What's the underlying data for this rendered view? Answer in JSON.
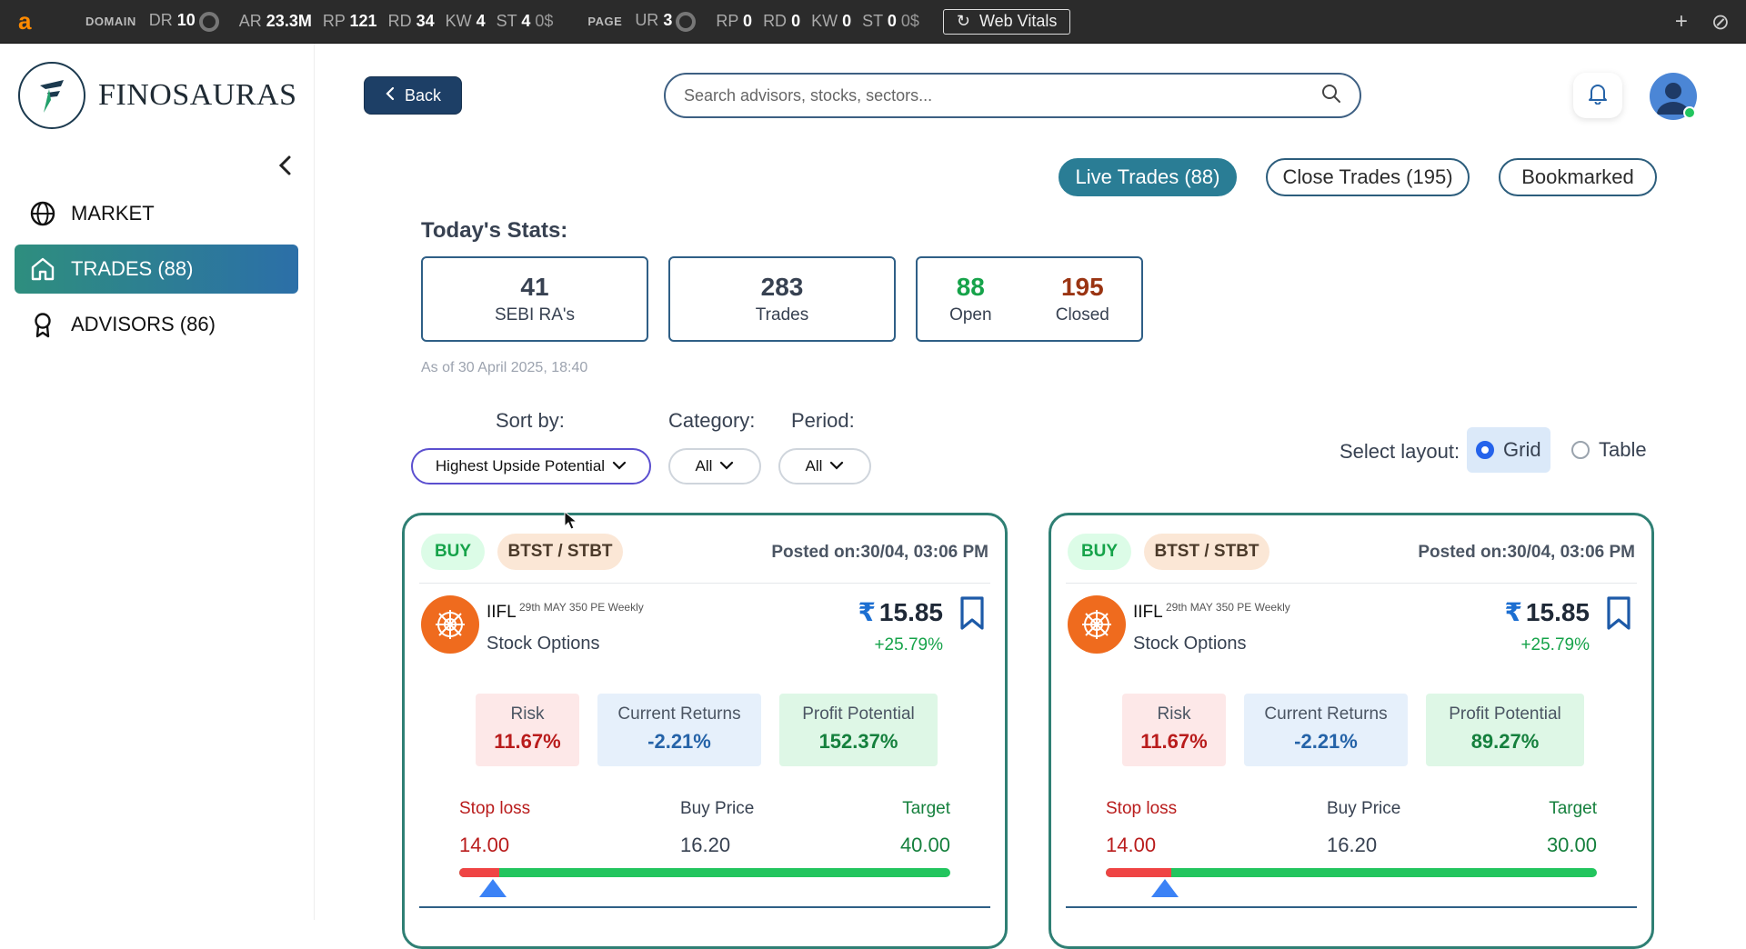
{
  "ext_bar": {
    "logo": "a",
    "domain_label": "DOMAIN",
    "domain_metrics": [
      {
        "k": "DR",
        "v": "10"
      },
      {
        "k": "AR",
        "v": "23.3M"
      },
      {
        "k": "RP",
        "v": "121"
      },
      {
        "k": "RD",
        "v": "34"
      },
      {
        "k": "KW",
        "v": "4"
      },
      {
        "k": "ST",
        "v": "4",
        "suffix": "0$"
      }
    ],
    "page_label": "PAGE",
    "page_metrics": [
      {
        "k": "UR",
        "v": "3"
      },
      {
        "k": "RP",
        "v": "0"
      },
      {
        "k": "RD",
        "v": "0"
      },
      {
        "k": "KW",
        "v": "0"
      },
      {
        "k": "ST",
        "v": "0",
        "suffix": "0$"
      }
    ],
    "web_vitals_label": "Web Vitals"
  },
  "sidebar": {
    "brand_name": "FINOSAURAS",
    "items": [
      {
        "label": "MARKET",
        "icon": "globe-icon"
      },
      {
        "label": "TRADES (88)",
        "icon": "home-icon",
        "active": true
      },
      {
        "label": "ADVISORS (86)",
        "icon": "award-icon"
      }
    ]
  },
  "header": {
    "back_label": "Back",
    "search_placeholder": "Search advisors, stocks, sectors..."
  },
  "tabs": [
    {
      "label": "Live Trades (88)",
      "active": true
    },
    {
      "label": "Close Trades (195)",
      "active": false
    },
    {
      "label": "Bookmarked",
      "active": false
    }
  ],
  "stats": {
    "title": "Today's Stats:",
    "sebi_value": "41",
    "sebi_label": "SEBI RA's",
    "trades_value": "283",
    "trades_label": "Trades",
    "open_value": "88",
    "open_label": "Open",
    "closed_value": "195",
    "closed_label": "Closed",
    "as_of": "As of 30 April 2025, 18:40",
    "open_color": "#16a34a",
    "closed_color": "#9a3412"
  },
  "filters": {
    "sort_label": "Sort by:",
    "sort_value": "Highest Upside Potential",
    "category_label": "Category:",
    "category_value": "All",
    "period_label": "Period:",
    "period_value": "All",
    "layout_label": "Select layout:",
    "layout_grid": "Grid",
    "layout_table": "Table",
    "layout_selected": "Grid"
  },
  "cards": [
    {
      "side": "BUY",
      "category": "BTST / STBT",
      "posted_label": "Posted on:",
      "posted_value": "30/04, 03:06 PM",
      "stock": "IIFL",
      "contract": "29th MAY 350 PE Weekly",
      "type": "Stock Options",
      "price": "15.85",
      "change": "+25.79%",
      "risk_label": "Risk",
      "risk": "11.67%",
      "returns_label": "Current Returns",
      "returns": "-2.21%",
      "potential_label": "Profit Potential",
      "potential": "152.37%",
      "stoploss_label": "Stop loss",
      "stoploss": "14.00",
      "buy_label": "Buy Price",
      "buy": "16.20",
      "target_label": "Target",
      "target": "40.00"
    },
    {
      "side": "BUY",
      "category": "BTST / STBT",
      "posted_label": "Posted on:",
      "posted_value": "30/04, 03:06 PM",
      "stock": "IIFL",
      "contract": "29th MAY 350 PE Weekly",
      "type": "Stock Options",
      "price": "15.85",
      "change": "+25.79%",
      "risk_label": "Risk",
      "risk": "11.67%",
      "returns_label": "Current Returns",
      "returns": "-2.21%",
      "potential_label": "Profit Potential",
      "potential": "89.27%",
      "stoploss_label": "Stop loss",
      "stoploss": "14.00",
      "buy_label": "Buy Price",
      "buy": "16.20",
      "target_label": "Target",
      "target": "30.00"
    }
  ],
  "rupee_symbol": "₹",
  "colors": {
    "accent": "#2a7d95",
    "nav_active_start": "#2e8e7e",
    "nav_active_end": "#2c6fa8",
    "back_button": "#1d3f66",
    "stop_loss": "#b91c1c",
    "target": "#15803d"
  }
}
